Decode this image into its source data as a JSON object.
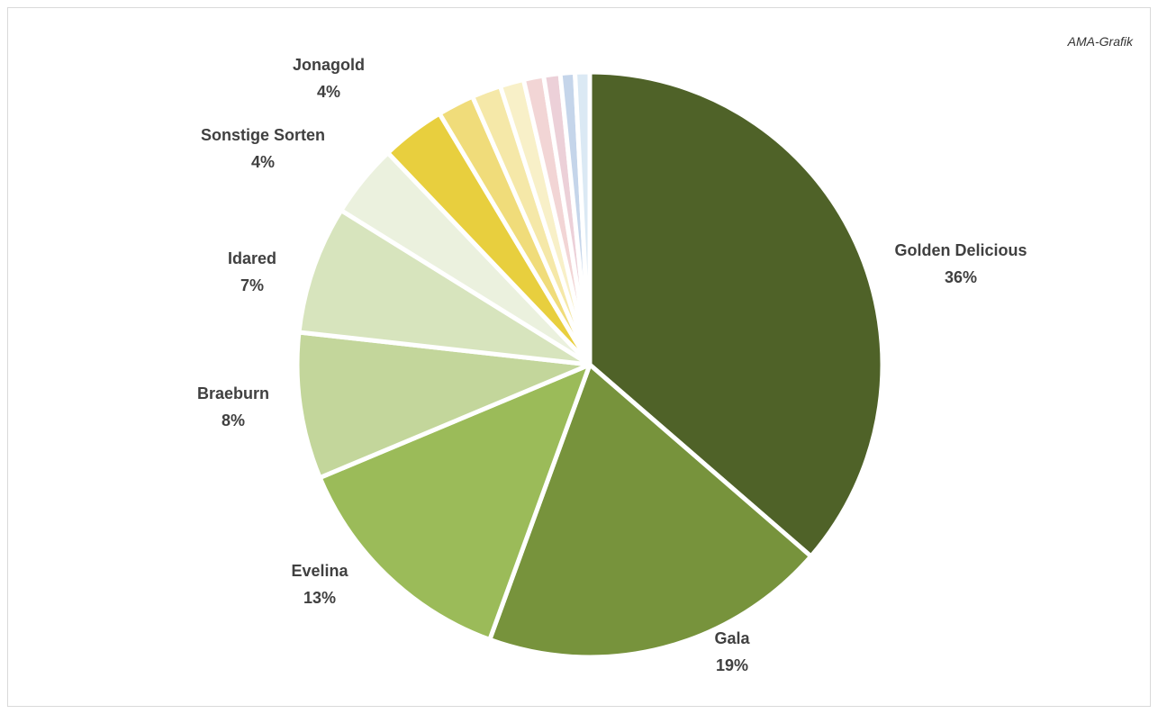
{
  "chart_data": {
    "type": "pie",
    "source_note": "AMA-Grafik",
    "slices": [
      {
        "label": "Golden Delicious",
        "percent_label": "36%",
        "value": 36,
        "color": "#4f6228",
        "show_label": true
      },
      {
        "label": "Gala",
        "percent_label": "19%",
        "value": 19,
        "color": "#77933c",
        "show_label": true
      },
      {
        "label": "Evelina",
        "percent_label": "13%",
        "value": 13,
        "color": "#9bbb59",
        "show_label": true
      },
      {
        "label": "Braeburn",
        "percent_label": "8%",
        "value": 8,
        "color": "#c3d69b",
        "show_label": true
      },
      {
        "label": "Idared",
        "percent_label": "7%",
        "value": 7,
        "color": "#d7e4bd",
        "show_label": true
      },
      {
        "label": "Sonstige Sorten",
        "percent_label": "4%",
        "value": 4,
        "color": "#ebf1de",
        "show_label": true
      },
      {
        "label": "Jonagold",
        "percent_label": "4%",
        "value": 3.5,
        "color": "#e8cf3e",
        "show_label": true
      },
      {
        "label": "",
        "percent_label": "",
        "value": 2,
        "color": "#f0dc7a",
        "show_label": false
      },
      {
        "label": "",
        "percent_label": "",
        "value": 1.6,
        "color": "#f5e8a8",
        "show_label": false
      },
      {
        "label": "",
        "percent_label": "",
        "value": 1.3,
        "color": "#f8f0c8",
        "show_label": false
      },
      {
        "label": "",
        "percent_label": "",
        "value": 1.1,
        "color": "#f2d5d5",
        "show_label": false
      },
      {
        "label": "",
        "percent_label": "",
        "value": 0.9,
        "color": "#ecd0d8",
        "show_label": false
      },
      {
        "label": "",
        "percent_label": "",
        "value": 0.8,
        "color": "#c5d5ea",
        "show_label": false
      },
      {
        "label": "",
        "percent_label": "",
        "value": 0.8,
        "color": "#dbe9f4",
        "show_label": false
      }
    ]
  }
}
